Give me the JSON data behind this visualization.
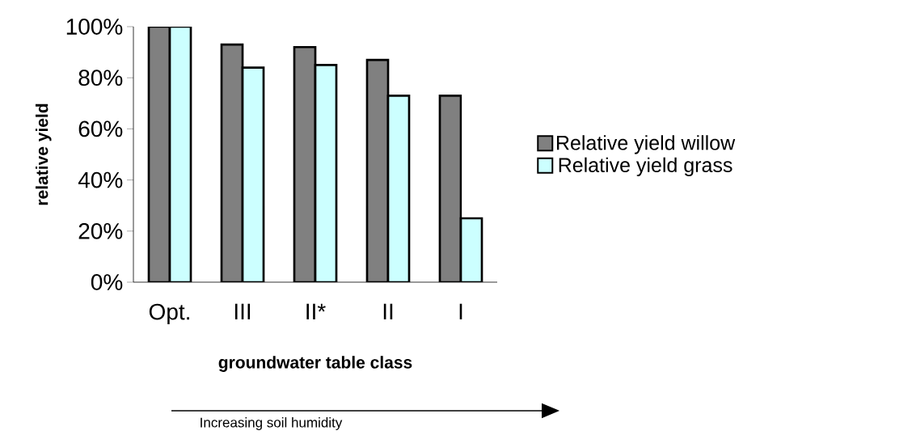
{
  "chart_data": {
    "type": "bar",
    "categories": [
      "Opt.",
      "III",
      "II*",
      "II",
      "I"
    ],
    "series": [
      {
        "name": "Relative yield willow",
        "color": "#808080",
        "values": [
          100,
          93,
          92,
          87,
          73
        ]
      },
      {
        "name": "Relative yield grass",
        "color": "#ccffff",
        "values": [
          100,
          84,
          85,
          73,
          25
        ]
      }
    ],
    "ylim": [
      0,
      100
    ],
    "yticks": [
      {
        "value": 0,
        "label": "0%"
      },
      {
        "value": 20,
        "label": "20%"
      },
      {
        "value": 40,
        "label": "40%"
      },
      {
        "value": 60,
        "label": "60%"
      },
      {
        "value": 80,
        "label": "80%"
      },
      {
        "value": 100,
        "label": "100%"
      }
    ],
    "xlabel": "groundwater table class",
    "ylabel": "relative yield",
    "annotations": [
      "Increasing soil humidity"
    ],
    "legend": "right",
    "grid": false
  }
}
